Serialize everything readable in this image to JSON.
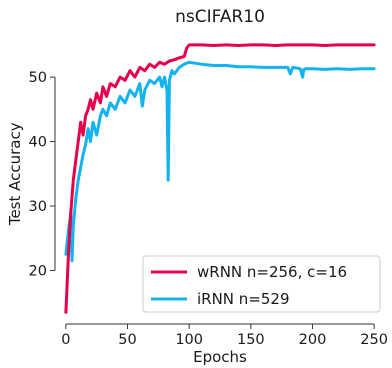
{
  "chart_data": {
    "type": "line",
    "title": "nsCIFAR10",
    "xlabel": "Epochs",
    "ylabel": "Test Accuracy",
    "xlim": [
      -8,
      258
    ],
    "ylim": [
      12,
      57
    ],
    "xticks": [
      0,
      50,
      100,
      150,
      200,
      250
    ],
    "yticks": [
      20,
      30,
      40,
      50
    ],
    "grid": false,
    "legend_position": "lower-right",
    "series": [
      {
        "name": "wRNN n=256, c=16",
        "color": "#e6004c",
        "x": [
          0,
          2,
          4,
          6,
          8,
          10,
          12,
          14,
          16,
          18,
          20,
          22,
          25,
          28,
          30,
          33,
          36,
          40,
          44,
          48,
          52,
          56,
          60,
          64,
          68,
          72,
          76,
          80,
          84,
          88,
          92,
          96,
          98,
          100,
          110,
          120,
          130,
          140,
          150,
          160,
          170,
          180,
          190,
          200,
          210,
          220,
          230,
          240,
          250
        ],
        "y": [
          13.5,
          22,
          29,
          34,
          37,
          40,
          43,
          41,
          44,
          45,
          46.5,
          45,
          47.5,
          46,
          48.5,
          47,
          49,
          48.5,
          50,
          49.5,
          51,
          50,
          51.5,
          51,
          52,
          51.5,
          52.3,
          52,
          52.5,
          52.7,
          53,
          53.2,
          54.5,
          55,
          55,
          54.9,
          55,
          54.9,
          55,
          55,
          54.9,
          55,
          55,
          55,
          54.9,
          55,
          55,
          55,
          55
        ]
      },
      {
        "name": "iRNN n=529",
        "color": "#12b3f0",
        "x": [
          0,
          2,
          4,
          5,
          6,
          8,
          10,
          12,
          14,
          16,
          18,
          20,
          22,
          25,
          28,
          30,
          33,
          36,
          40,
          44,
          48,
          52,
          56,
          60,
          62,
          64,
          68,
          72,
          76,
          78,
          80,
          82,
          83,
          84,
          86,
          88,
          92,
          96,
          100,
          110,
          120,
          130,
          140,
          150,
          160,
          170,
          180,
          182,
          184,
          190,
          192,
          193,
          195,
          200,
          210,
          220,
          230,
          240,
          250
        ],
        "y": [
          22.5,
          26,
          29,
          21.5,
          27,
          31,
          34,
          36,
          38,
          39.5,
          42,
          40,
          43,
          41,
          44,
          45,
          44,
          46,
          45,
          47,
          46,
          48,
          47,
          49,
          45.5,
          48,
          49.5,
          49,
          50,
          48.5,
          50,
          48,
          34,
          49.5,
          51,
          50.5,
          51.5,
          52,
          52.3,
          52,
          51.8,
          51.8,
          51.6,
          51.6,
          51.5,
          51.5,
          51.5,
          50.5,
          51.5,
          51.3,
          50,
          51.2,
          51.3,
          51.3,
          51.2,
          51.3,
          51.2,
          51.3,
          51.3
        ]
      }
    ]
  }
}
